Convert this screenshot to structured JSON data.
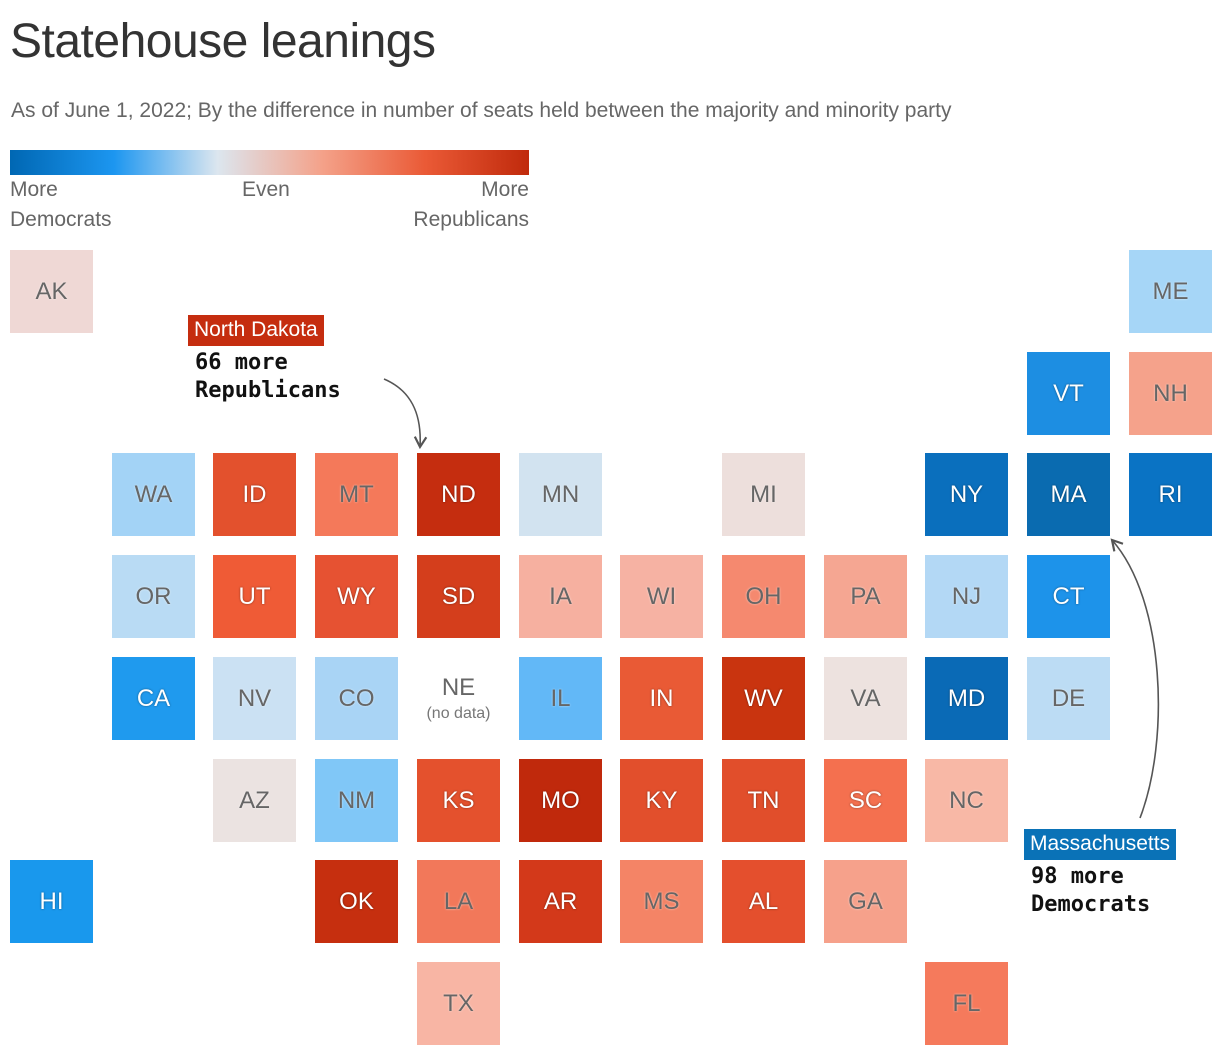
{
  "title": "Statehouse leanings",
  "subtitle": "As of June 1, 2022; By the difference in number of seats held between the majority and minority party",
  "legend": {
    "left_label": "More\nDemocrats",
    "middle_label": "Even",
    "right_label": "More\nRepublicans",
    "gradient_colors": [
      "#0067b3",
      "#1c96f0",
      "#dce6ef",
      "#f4a28a",
      "#ea5a36",
      "#c02a0c"
    ]
  },
  "no_data_note": "(no data)",
  "callouts": {
    "north_dakota": {
      "label": "North Dakota",
      "text": "66 more\nRepublicans",
      "color": "#c52d0f"
    },
    "massachusetts": {
      "label": "Massachusetts",
      "text": "98 more\nDemocrats",
      "color": "#0a72b7"
    }
  },
  "states": [
    {
      "abbr": "AK",
      "col": 0,
      "row": 0,
      "color": "#efd8d5",
      "lean": "R"
    },
    {
      "abbr": "ME",
      "col": 11,
      "row": 0,
      "color": "#a6d6f7",
      "lean": "D"
    },
    {
      "abbr": "VT",
      "col": 10,
      "row": 1,
      "color": "#1d8ee2",
      "lean": "D"
    },
    {
      "abbr": "NH",
      "col": 11,
      "row": 1,
      "color": "#f5a28b",
      "lean": "R"
    },
    {
      "abbr": "WA",
      "col": 1,
      "row": 2,
      "color": "#a3d3f6",
      "lean": "D"
    },
    {
      "abbr": "ID",
      "col": 2,
      "row": 2,
      "color": "#e3512d",
      "lean": "R"
    },
    {
      "abbr": "MT",
      "col": 3,
      "row": 2,
      "color": "#f4795a",
      "lean": "R"
    },
    {
      "abbr": "ND",
      "col": 4,
      "row": 2,
      "color": "#c52d0f",
      "lean": "R"
    },
    {
      "abbr": "MN",
      "col": 5,
      "row": 2,
      "color": "#d2e3f0",
      "lean": "D"
    },
    {
      "abbr": "MI",
      "col": 7,
      "row": 2,
      "color": "#eddfdc",
      "lean": "R"
    },
    {
      "abbr": "NY",
      "col": 9,
      "row": 2,
      "color": "#0a6fbd",
      "lean": "D"
    },
    {
      "abbr": "MA",
      "col": 10,
      "row": 2,
      "color": "#0a6bb0",
      "lean": "D"
    },
    {
      "abbr": "RI",
      "col": 11,
      "row": 2,
      "color": "#0a73c4",
      "lean": "D"
    },
    {
      "abbr": "OR",
      "col": 1,
      "row": 3,
      "color": "#b9dbf4",
      "lean": "D"
    },
    {
      "abbr": "UT",
      "col": 2,
      "row": 3,
      "color": "#ef5b36",
      "lean": "R"
    },
    {
      "abbr": "WY",
      "col": 3,
      "row": 3,
      "color": "#e65232",
      "lean": "R"
    },
    {
      "abbr": "SD",
      "col": 4,
      "row": 3,
      "color": "#d43e1c",
      "lean": "R"
    },
    {
      "abbr": "IA",
      "col": 5,
      "row": 3,
      "color": "#f6b0a0",
      "lean": "R"
    },
    {
      "abbr": "WI",
      "col": 6,
      "row": 3,
      "color": "#f6b2a3",
      "lean": "R"
    },
    {
      "abbr": "OH",
      "col": 7,
      "row": 3,
      "color": "#f5896f",
      "lean": "R"
    },
    {
      "abbr": "PA",
      "col": 8,
      "row": 3,
      "color": "#f5a692",
      "lean": "R"
    },
    {
      "abbr": "NJ",
      "col": 9,
      "row": 3,
      "color": "#b3d8f5",
      "lean": "D"
    },
    {
      "abbr": "CT",
      "col": 10,
      "row": 3,
      "color": "#1d93ea",
      "lean": "D"
    },
    {
      "abbr": "CA",
      "col": 1,
      "row": 4,
      "color": "#1f9aee",
      "lean": "D"
    },
    {
      "abbr": "NV",
      "col": 2,
      "row": 4,
      "color": "#cbe1f3",
      "lean": "D"
    },
    {
      "abbr": "CO",
      "col": 3,
      "row": 4,
      "color": "#a9d4f5",
      "lean": "D"
    },
    {
      "abbr": "NE",
      "col": 4,
      "row": 4,
      "color": "#ffffff",
      "lean": "none"
    },
    {
      "abbr": "IL",
      "col": 5,
      "row": 4,
      "color": "#62b8f7",
      "lean": "D"
    },
    {
      "abbr": "IN",
      "col": 6,
      "row": 4,
      "color": "#e95a35",
      "lean": "R"
    },
    {
      "abbr": "WV",
      "col": 7,
      "row": 4,
      "color": "#c9340f",
      "lean": "R"
    },
    {
      "abbr": "VA",
      "col": 8,
      "row": 4,
      "color": "#ede2df",
      "lean": "R"
    },
    {
      "abbr": "MD",
      "col": 9,
      "row": 4,
      "color": "#0a6ab6",
      "lean": "D"
    },
    {
      "abbr": "DE",
      "col": 10,
      "row": 4,
      "color": "#bcdcf4",
      "lean": "D"
    },
    {
      "abbr": "AZ",
      "col": 2,
      "row": 5,
      "color": "#ebe3e1",
      "lean": "R"
    },
    {
      "abbr": "NM",
      "col": 3,
      "row": 5,
      "color": "#80c7f7",
      "lean": "D"
    },
    {
      "abbr": "KS",
      "col": 4,
      "row": 5,
      "color": "#e4512d",
      "lean": "R"
    },
    {
      "abbr": "MO",
      "col": 5,
      "row": 5,
      "color": "#c0290c",
      "lean": "R"
    },
    {
      "abbr": "KY",
      "col": 6,
      "row": 5,
      "color": "#e24f2c",
      "lean": "R"
    },
    {
      "abbr": "TN",
      "col": 7,
      "row": 5,
      "color": "#e14e2b",
      "lean": "R"
    },
    {
      "abbr": "SC",
      "col": 8,
      "row": 5,
      "color": "#f4704f",
      "lean": "R"
    },
    {
      "abbr": "NC",
      "col": 9,
      "row": 5,
      "color": "#f8b8a6",
      "lean": "R"
    },
    {
      "abbr": "HI",
      "col": 0,
      "row": 6,
      "color": "#1998ed",
      "lean": "D"
    },
    {
      "abbr": "OK",
      "col": 3,
      "row": 6,
      "color": "#c62f0f",
      "lean": "R"
    },
    {
      "abbr": "LA",
      "col": 4,
      "row": 6,
      "color": "#f2785a",
      "lean": "R"
    },
    {
      "abbr": "AR",
      "col": 5,
      "row": 6,
      "color": "#d3391a",
      "lean": "R"
    },
    {
      "abbr": "MS",
      "col": 6,
      "row": 6,
      "color": "#f48466",
      "lean": "R"
    },
    {
      "abbr": "AL",
      "col": 7,
      "row": 6,
      "color": "#e44f2d",
      "lean": "R"
    },
    {
      "abbr": "GA",
      "col": 8,
      "row": 6,
      "color": "#f6a18b",
      "lean": "R"
    },
    {
      "abbr": "TX",
      "col": 4,
      "row": 7,
      "color": "#f8b5a4",
      "lean": "R"
    },
    {
      "abbr": "FL",
      "col": 9,
      "row": 7,
      "color": "#f57a5c",
      "lean": "R"
    }
  ]
}
